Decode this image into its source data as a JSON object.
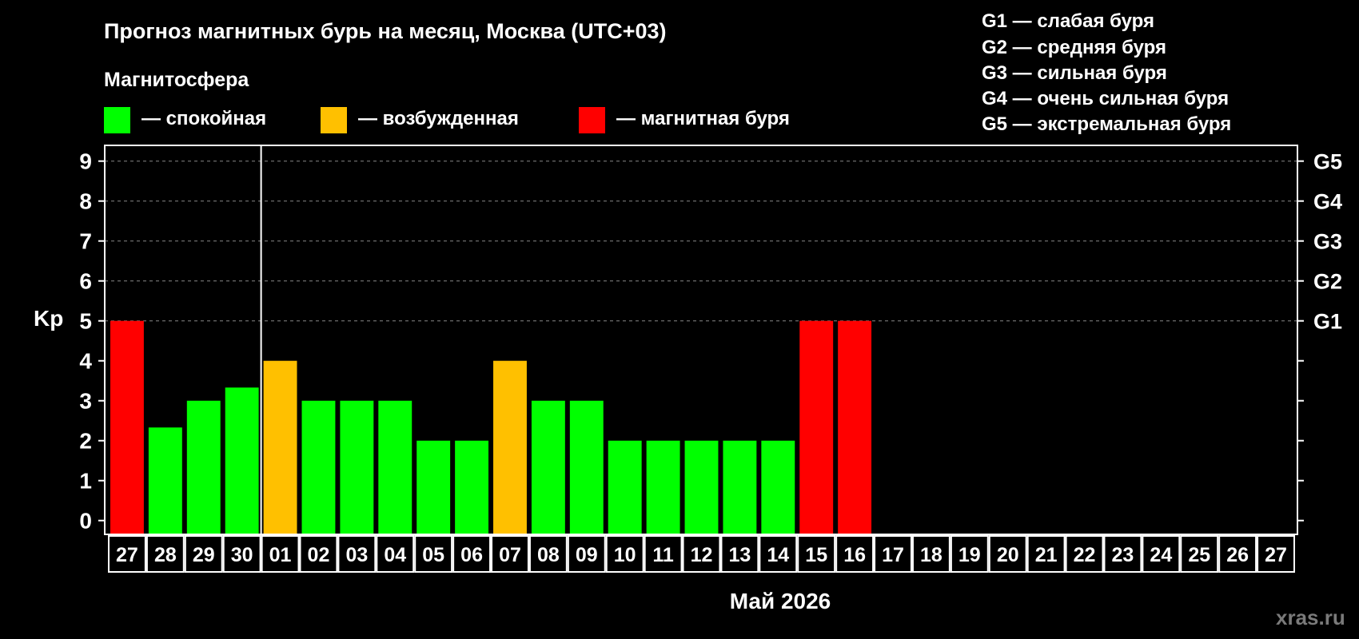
{
  "title": "Прогноз магнитных бурь на месяц, Москва (UTC+03)",
  "legend": {
    "heading": "Магнитосфера",
    "items": [
      {
        "label": "— спокойная",
        "color": "#00ff00"
      },
      {
        "label": "— возбужденная",
        "color": "#ffc000"
      },
      {
        "label": "— магнитная буря",
        "color": "#ff0000"
      }
    ]
  },
  "g_scale": [
    "G1 — слабая буря",
    "G2 — средняя буря",
    "G3 — сильная буря",
    "G4 — очень сильная буря",
    "G5 — экстремальная буря"
  ],
  "watermark": "xras.ru",
  "chart_data": {
    "type": "bar",
    "ylabel": "Kp",
    "xlabel": "Май 2026",
    "ylim": [
      0,
      9
    ],
    "yticks": [
      0,
      1,
      2,
      3,
      4,
      5,
      6,
      7,
      8,
      9
    ],
    "right_axis_labels": [
      {
        "kp": 5,
        "label": "G1"
      },
      {
        "kp": 6,
        "label": "G2"
      },
      {
        "kp": 7,
        "label": "G3"
      },
      {
        "kp": 8,
        "label": "G4"
      },
      {
        "kp": 9,
        "label": "G5"
      }
    ],
    "grid": "dashed horizontal at Kp 5–9",
    "month_separator_after": "30",
    "categories": [
      "27",
      "28",
      "29",
      "30",
      "01",
      "02",
      "03",
      "04",
      "05",
      "06",
      "07",
      "08",
      "09",
      "10",
      "11",
      "12",
      "13",
      "14",
      "15",
      "16",
      "17",
      "18",
      "19",
      "20",
      "21",
      "22",
      "23",
      "24",
      "25",
      "26",
      "27"
    ],
    "values": [
      5,
      2.33,
      3,
      3.33,
      4,
      3,
      3,
      3,
      2,
      2,
      4,
      3,
      3,
      2,
      2,
      2,
      2,
      2,
      5,
      5,
      null,
      null,
      null,
      null,
      null,
      null,
      null,
      null,
      null,
      null,
      null
    ],
    "colors": {
      "quiet": "#00ff00",
      "active": "#ffc000",
      "storm": "#ff0000"
    }
  }
}
